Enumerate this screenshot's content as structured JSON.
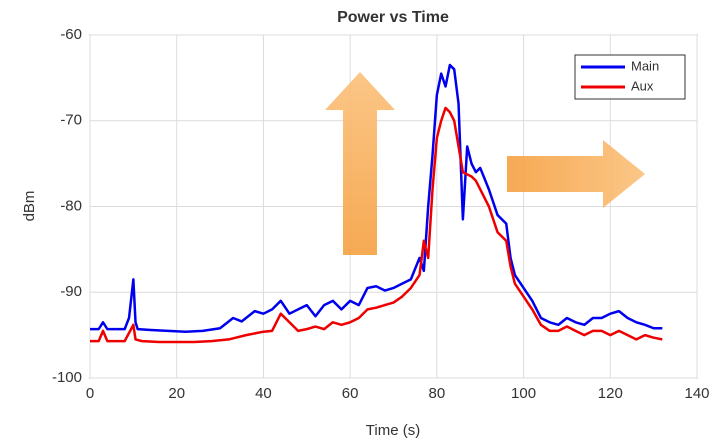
{
  "chart_data": {
    "type": "line",
    "title": "Power vs Time",
    "x_label": "Time (s)",
    "y_label": "dBm",
    "xlim": [
      0,
      140
    ],
    "xticks": [
      0,
      20,
      40,
      60,
      80,
      100,
      120,
      140
    ],
    "ylim": [
      -100,
      -60
    ],
    "yticks": [
      -100,
      -90,
      -80,
      -70,
      -60
    ],
    "grid": true,
    "legend": "upper right",
    "series": [
      {
        "name": "Main",
        "color": "#0000ee",
        "x": [
          0,
          2,
          3,
          4,
          6,
          8,
          9,
          10,
          10.5,
          11,
          14,
          18,
          22,
          26,
          30,
          33,
          35,
          38,
          40,
          42,
          44,
          46,
          48,
          50,
          52,
          54,
          56,
          58,
          60,
          62,
          64,
          66,
          68,
          70,
          72,
          74,
          76,
          77,
          78,
          79,
          80,
          81,
          82,
          83,
          84,
          85,
          86,
          87,
          88,
          89,
          90,
          92,
          94,
          96,
          97,
          98,
          100,
          102,
          104,
          106,
          108,
          110,
          112,
          114,
          116,
          118,
          120,
          122,
          124,
          126,
          128,
          130,
          132
        ],
        "values": [
          -94.3,
          -94.3,
          -93.5,
          -94.3,
          -94.3,
          -94.3,
          -93,
          -88.5,
          -93.5,
          -94.3,
          -94.4,
          -94.5,
          -94.6,
          -94.5,
          -94.2,
          -93,
          -93.4,
          -92.2,
          -92.5,
          -92,
          -91,
          -92.5,
          -92,
          -91.5,
          -92.8,
          -91.5,
          -91,
          -92,
          -91,
          -91.5,
          -89.5,
          -89.3,
          -89.8,
          -89.5,
          -89,
          -88.5,
          -86,
          -87.5,
          -80,
          -74,
          -67,
          -64.5,
          -66,
          -63.5,
          -64,
          -68,
          -81.5,
          -73,
          -75,
          -76,
          -75.5,
          -78,
          -81,
          -82,
          -86,
          -88,
          -89.5,
          -91,
          -93,
          -93.5,
          -93.8,
          -93,
          -93.5,
          -93.8,
          -93,
          -93,
          -92.5,
          -92.2,
          -93,
          -93.5,
          -93.8,
          -94.2,
          -94.2
        ]
      },
      {
        "name": "Aux",
        "color": "#ee0000",
        "x": [
          0,
          2,
          3,
          4,
          8,
          10,
          10.5,
          12,
          16,
          20,
          24,
          28,
          32,
          36,
          40,
          42,
          44,
          46,
          48,
          50,
          52,
          54,
          56,
          58,
          60,
          62,
          64,
          66,
          68,
          70,
          72,
          74,
          76,
          77,
          78,
          79,
          80,
          81,
          82,
          83,
          84,
          85,
          86,
          88,
          89,
          90,
          92,
          94,
          96,
          97,
          98,
          100,
          102,
          104,
          106,
          108,
          110,
          112,
          114,
          116,
          118,
          120,
          122,
          124,
          126,
          128,
          130,
          132
        ],
        "values": [
          -95.7,
          -95.7,
          -94.5,
          -95.7,
          -95.7,
          -93.8,
          -95.5,
          -95.7,
          -95.8,
          -95.8,
          -95.8,
          -95.7,
          -95.5,
          -95,
          -94.6,
          -94.5,
          -92.5,
          -93.5,
          -94.5,
          -94.3,
          -94,
          -94.3,
          -93.5,
          -93.8,
          -93.5,
          -93,
          -92,
          -91.8,
          -91.5,
          -91.2,
          -90.5,
          -89.5,
          -88,
          -84,
          -86,
          -78,
          -72,
          -70,
          -68.5,
          -69,
          -70,
          -73,
          -76,
          -76.5,
          -77,
          -78,
          -80,
          -83,
          -84,
          -87,
          -89,
          -90.5,
          -92,
          -93.8,
          -94.5,
          -94.5,
          -94,
          -94.5,
          -95,
          -94.5,
          -94.5,
          -95,
          -94.5,
          -95,
          -95.5,
          -95,
          -95.3,
          -95.5
        ]
      }
    ]
  }
}
